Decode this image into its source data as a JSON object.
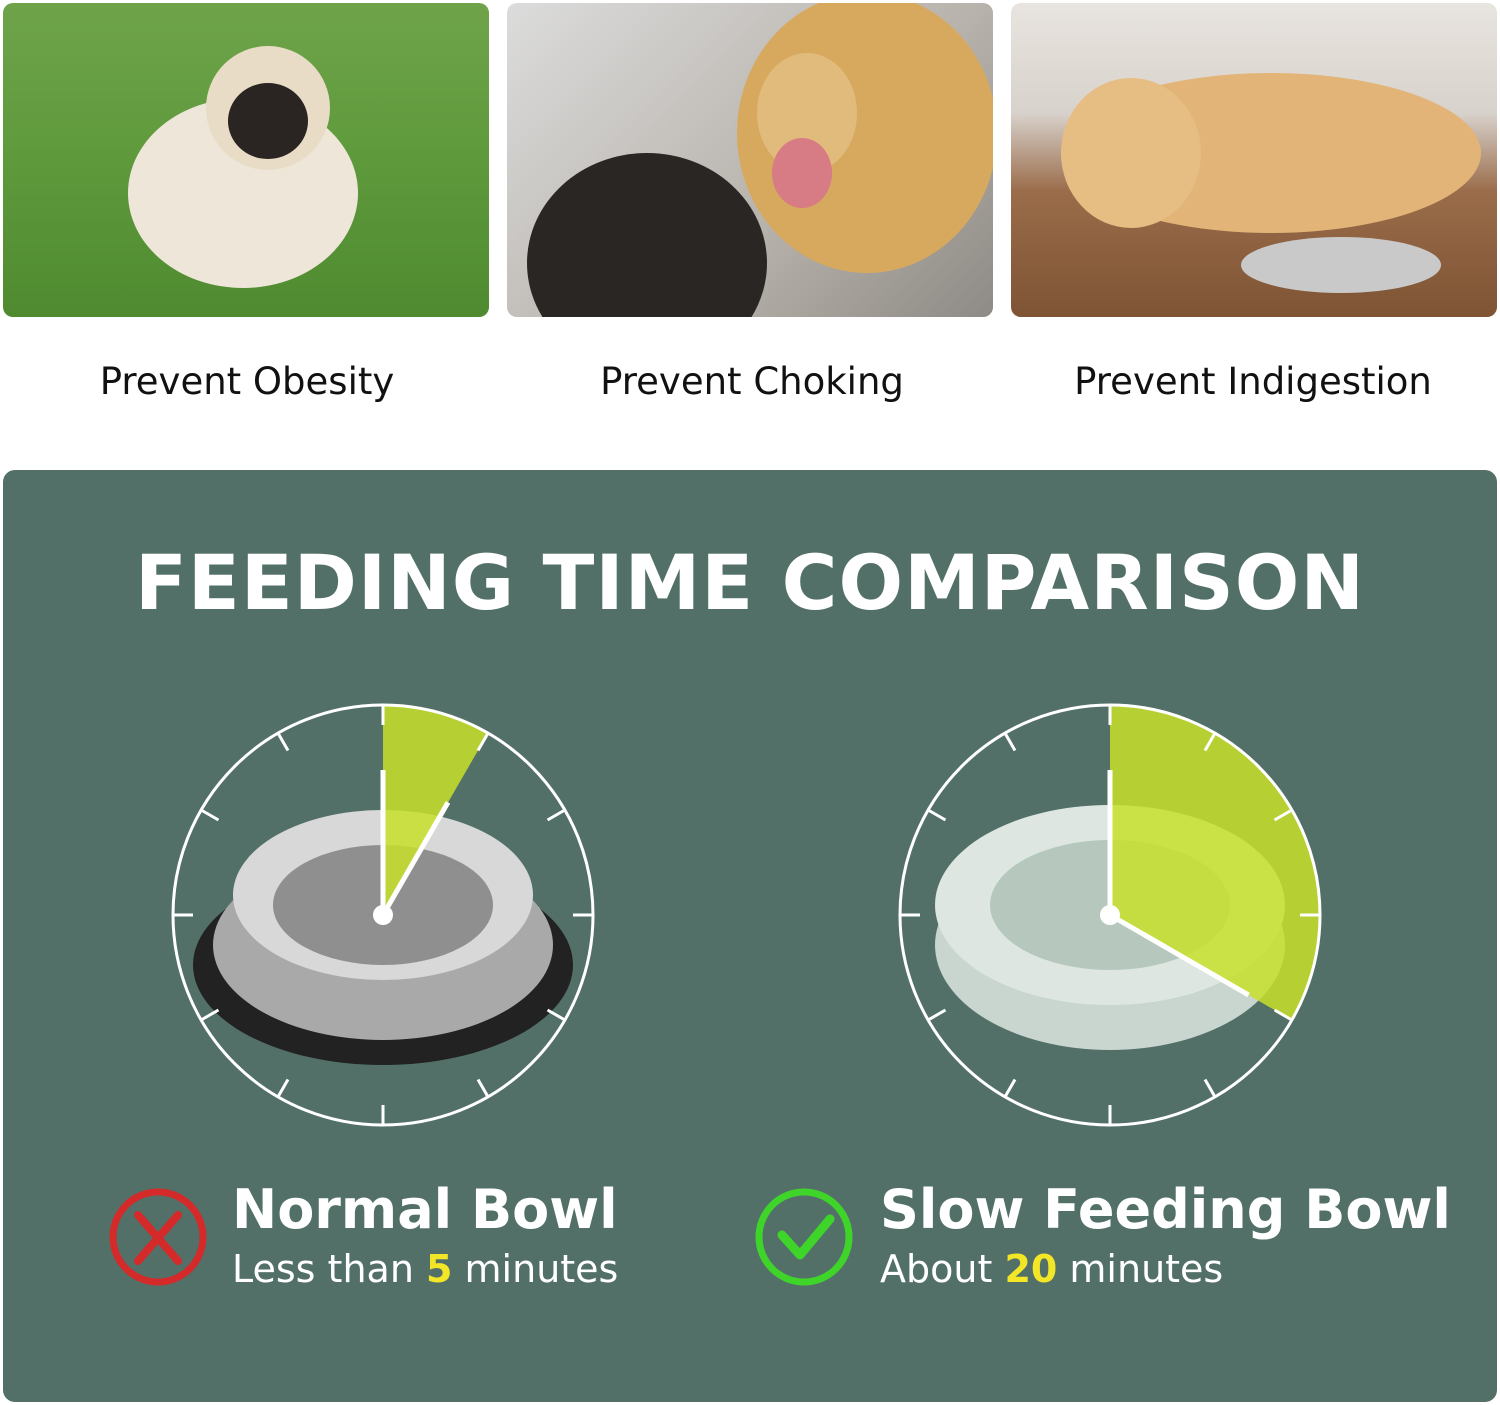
{
  "benefits": [
    {
      "caption": "Prevent Obesity",
      "image": "pug-on-grass-photo"
    },
    {
      "caption": "Prevent Choking",
      "image": "golden-retriever-mouth-check-photo"
    },
    {
      "caption": "Prevent Indigestion",
      "image": "labrador-lying-by-bowl-photo"
    }
  ],
  "comparison": {
    "title": "FEEDING TIME COMPARISON",
    "normal": {
      "name": "Normal Bowl",
      "prefix": "Less than ",
      "value": "5",
      "suffix": " minutes",
      "minutes": 5,
      "icon": "x-circle-icon"
    },
    "slow": {
      "name": "Slow Feeding Bowl",
      "prefix": "About ",
      "value": "20",
      "suffix": " minutes",
      "minutes": 20,
      "icon": "check-circle-icon"
    }
  },
  "colors": {
    "panel": "#527068",
    "wedge": "#c8e02a",
    "highlight": "#f2e627",
    "cross": "#d42a2a",
    "check": "#3fd42a"
  }
}
